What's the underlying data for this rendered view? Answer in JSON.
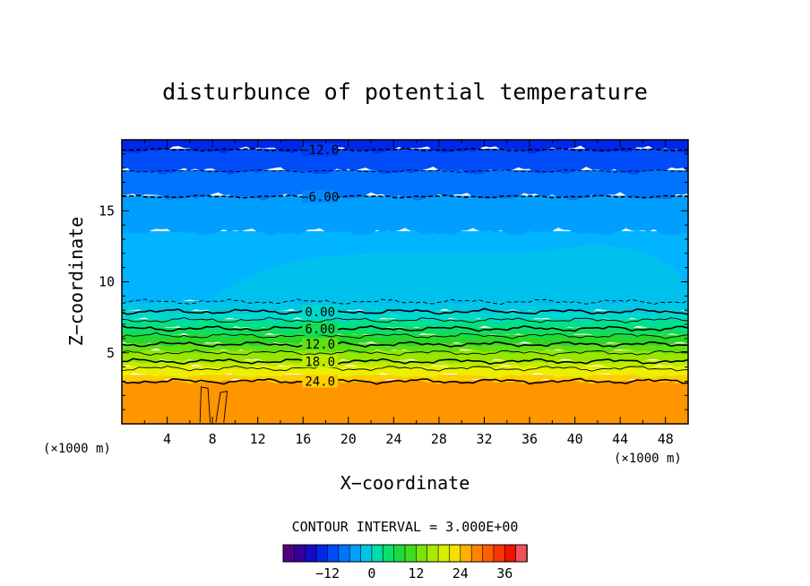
{
  "chart_data": {
    "type": "heatmap",
    "title": "disturbunce of potential temperature",
    "xlabel": "X−coordinate",
    "ylabel": "Z−coordinate",
    "x_unit": "(×1000 m)",
    "z_unit": "(×1000 m)",
    "xlim": [
      0,
      50
    ],
    "ylim": [
      0,
      20
    ],
    "x_ticks": [
      4,
      8,
      12,
      16,
      20,
      24,
      28,
      32,
      36,
      40,
      44,
      48
    ],
    "y_ticks": [
      5,
      10,
      15
    ],
    "contour_interval_text": "CONTOUR INTERVAL = 3.000E+00",
    "colorbar": {
      "min": -24,
      "max": 42,
      "step": 3,
      "tick_values": [
        -12,
        0,
        12,
        24,
        36
      ],
      "tick_labels": [
        "−12",
        "0",
        "12",
        "24",
        "36"
      ]
    },
    "bands": [
      {
        "z0": 0,
        "z1": 3.0,
        "value": 27
      },
      {
        "z0": 3.0,
        "z1": 3.4,
        "value": 24
      },
      {
        "z0": 3.4,
        "z1": 4.0,
        "value": 21
      },
      {
        "z0": 4.0,
        "z1": 4.4,
        "value": 18
      },
      {
        "z0": 4.4,
        "z1": 5.1,
        "value": 15
      },
      {
        "z0": 5.1,
        "z1": 5.6,
        "value": 12
      },
      {
        "z0": 5.6,
        "z1": 6.2,
        "value": 9
      },
      {
        "z0": 6.2,
        "z1": 6.7,
        "value": 6
      },
      {
        "z0": 6.7,
        "z1": 7.3,
        "value": 3
      },
      {
        "z0": 7.3,
        "z1": 7.9,
        "value": 0
      },
      {
        "z0": 7.9,
        "z1": 8.6,
        "value": -1.5
      },
      {
        "z0": 8.6,
        "z1": 13.5,
        "value": -3
      },
      {
        "z0": 13.5,
        "z1": 16.0,
        "value": -4.5
      },
      {
        "z0": 16.0,
        "z1": 17.8,
        "value": -7.5
      },
      {
        "z0": 17.8,
        "z1": 19.3,
        "value": -10.5
      },
      {
        "z0": 19.3,
        "z1": 20,
        "value": -13.5
      }
    ],
    "contours": [
      {
        "level": 24.0,
        "z": 3.0,
        "label": "24.0",
        "dashed": false,
        "bold": true
      },
      {
        "level": 21.0,
        "z": 3.9,
        "label": "",
        "dashed": false,
        "bold": false
      },
      {
        "level": 18.0,
        "z": 4.4,
        "label": "18.0",
        "dashed": false,
        "bold": true
      },
      {
        "level": 15.0,
        "z": 5.0,
        "label": "",
        "dashed": false,
        "bold": false
      },
      {
        "level": 12.0,
        "z": 5.6,
        "label": "12.0",
        "dashed": false,
        "bold": true
      },
      {
        "level": 9.0,
        "z": 6.2,
        "label": "",
        "dashed": false,
        "bold": false
      },
      {
        "level": 6.0,
        "z": 6.7,
        "label": "6.00",
        "dashed": false,
        "bold": true
      },
      {
        "level": 3.0,
        "z": 7.3,
        "label": "",
        "dashed": false,
        "bold": false
      },
      {
        "level": 0.0,
        "z": 7.9,
        "label": "0.00",
        "dashed": false,
        "bold": true
      },
      {
        "level": -3.0,
        "z": 8.6,
        "label": "",
        "dashed": true,
        "bold": false
      },
      {
        "level": -6.0,
        "z": 16.0,
        "label": "−6.00",
        "dashed": true,
        "bold": true
      },
      {
        "level": -9.0,
        "z": 17.8,
        "label": "",
        "dashed": true,
        "bold": false
      },
      {
        "level": -12.0,
        "z": 19.3,
        "label": "−12.0",
        "dashed": true,
        "bold": true
      }
    ]
  }
}
